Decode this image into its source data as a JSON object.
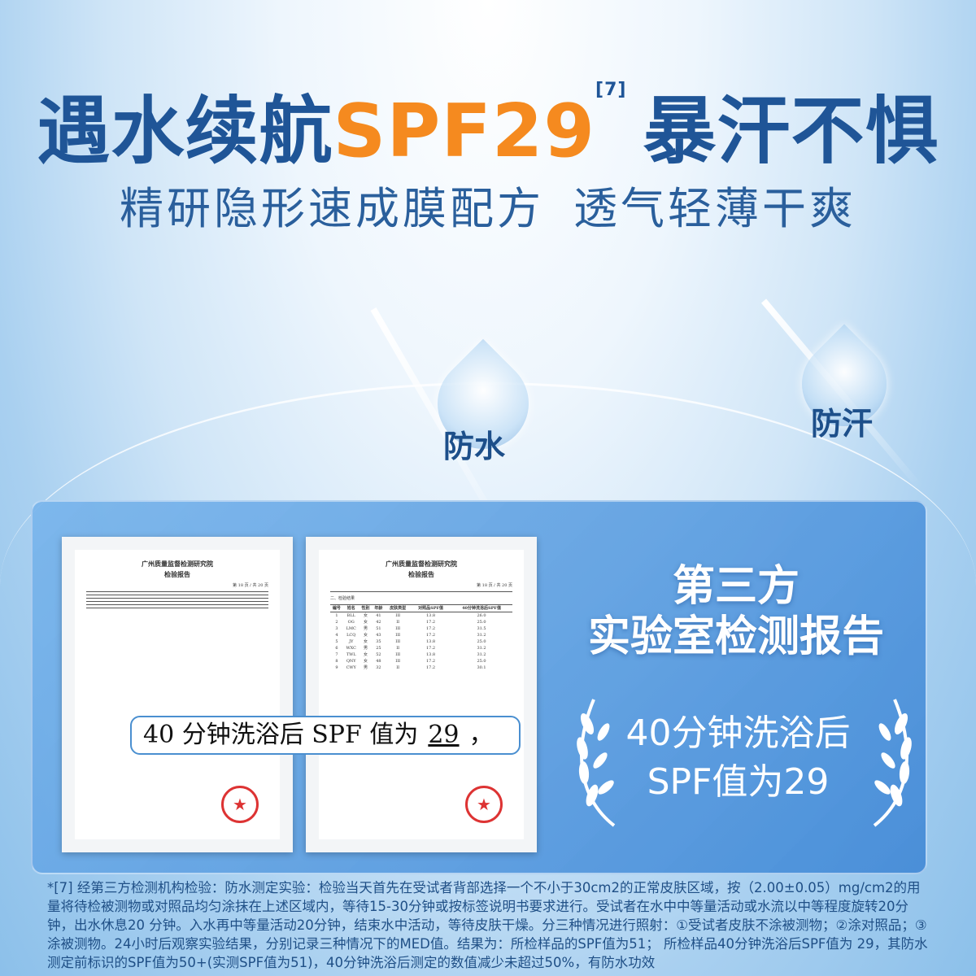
{
  "headline": {
    "part1": "遇水续航",
    "spf": "SPF29",
    "footnote_ref": "[7]",
    "part2": "暴汗不惧"
  },
  "subheadline": {
    "left": "精研隐形速成膜配方",
    "right": "透气轻薄干爽"
  },
  "badges": [
    {
      "label": "防水",
      "icon": "water-drop-icon"
    },
    {
      "label": "防汗",
      "icon": "water-drop-icon"
    }
  ],
  "colors": {
    "primary": "#1f5597",
    "accent": "#f58a1f"
  },
  "report_left": {
    "institute": "广州质量监督检测研究院",
    "title": "检验报告",
    "page": "第 18 页 / 共 20 页",
    "seal_icon": "red-star-seal-icon"
  },
  "report_right": {
    "institute": "广州质量监督检测研究院",
    "title": "检验报告",
    "page": "第 18 页 / 共 20 页",
    "section": "二、检验结果",
    "columns": [
      "编号",
      "姓名",
      "性别",
      "年龄",
      "皮肤类型",
      "对照品SPF值",
      "40分钟洗浴后SPF值"
    ],
    "rows": [
      [
        "1",
        "BLL",
        "女",
        "41",
        "III",
        "13.8",
        "26.0"
      ],
      [
        "2",
        "OG",
        "女",
        "42",
        "II",
        "17.2",
        "25.0"
      ],
      [
        "3",
        "LMC",
        "男",
        "51",
        "III",
        "17.2",
        "31.5"
      ],
      [
        "4",
        "LCQ",
        "女",
        "43",
        "III",
        "17.2",
        "31.2"
      ],
      [
        "5",
        "JY",
        "女",
        "35",
        "III",
        "13.8",
        "25.0"
      ],
      [
        "6",
        "WXC",
        "男",
        "25",
        "II",
        "17.2",
        "31.2"
      ],
      [
        "7",
        "TWL",
        "女",
        "52",
        "III",
        "13.8",
        "31.2"
      ],
      [
        "8",
        "QNY",
        "女",
        "48",
        "III",
        "17.2",
        "25.0"
      ],
      [
        "9",
        "CWY",
        "男",
        "32",
        "II",
        "17.2",
        "30.1"
      ]
    ],
    "seal_icon": "red-star-seal-icon"
  },
  "callout": {
    "prefix": "40 分钟洗浴后 SPF 值为",
    "value": "29",
    "suffix": "，"
  },
  "right": {
    "title_line1": "第三方",
    "title_line2": "实验室检测报告",
    "claim_line1": "40分钟洗浴后",
    "claim_line2": "SPF值为29",
    "laurel_icon": "laurel-wreath-icon"
  },
  "footnote": "*[7] 经第三方检测机构检验：防水测定实验：检验当天首先在受试者背部选择一个不小于30cm2的正常皮肤区域，按（2.00±0.05）mg/cm2的用量将待检被测物或对照品均匀涂抹在上述区域内，等待15-30分钟或按标签说明书要求进行。受试者在水中中等量活动或水流以中等程度旋转20分钟，出水休息20 分钟。入水再中等量活动20分钟，结束水中活动，等待皮肤干燥。分三种情况进行照射：①受试者皮肤不涂被测物；②涂对照品；③涂被测物。24小时后观察实验结果，分别记录三种情况下的MED值。结果为：所检样品的SPF值为51； 所检样品40分钟洗浴后SPF值为 29，其防水测定前标识的SPF值为50+(实测SPF值为51)，40分钟洗浴后测定的数值减少未超过50%，有防水功效"
}
